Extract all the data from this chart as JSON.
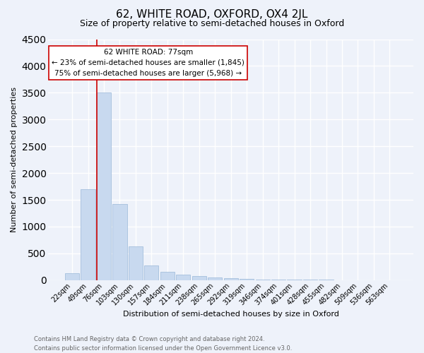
{
  "title": "62, WHITE ROAD, OXFORD, OX4 2JL",
  "subtitle": "Size of property relative to semi-detached houses in Oxford",
  "xlabel": "Distribution of semi-detached houses by size in Oxford",
  "ylabel": "Number of semi-detached properties",
  "footnote1": "Contains HM Land Registry data © Crown copyright and database right 2024.",
  "footnote2": "Contains public sector information licensed under the Open Government Licence v3.0.",
  "annotation_title": "62 WHITE ROAD: 77sqm",
  "annotation_line2": "← 23% of semi-detached houses are smaller (1,845)",
  "annotation_line3": "75% of semi-detached houses are larger (5,968) →",
  "bar_color": "#c8d9ef",
  "bar_edge_color": "#9ab8d8",
  "marker_line_color": "#cc0000",
  "annotation_box_edge": "#cc0000",
  "background_color": "#eef2fa",
  "grid_color": "#ffffff",
  "categories": [
    "22sqm",
    "49sqm",
    "76sqm",
    "103sqm",
    "130sqm",
    "157sqm",
    "184sqm",
    "211sqm",
    "238sqm",
    "265sqm",
    "292sqm",
    "319sqm",
    "346sqm",
    "374sqm",
    "401sqm",
    "428sqm",
    "455sqm",
    "482sqm",
    "509sqm",
    "536sqm",
    "563sqm"
  ],
  "values": [
    130,
    1700,
    3500,
    1420,
    630,
    270,
    155,
    100,
    80,
    55,
    35,
    25,
    15,
    10,
    8,
    5,
    5,
    3,
    3,
    2,
    2
  ],
  "ylim": [
    0,
    4500
  ],
  "yticks": [
    0,
    500,
    1000,
    1500,
    2000,
    2500,
    3000,
    3500,
    4000,
    4500
  ],
  "property_bar_index": 2,
  "title_fontsize": 11,
  "subtitle_fontsize": 9,
  "axis_label_fontsize": 8,
  "tick_fontsize": 7,
  "annotation_fontsize": 7.5,
  "footnote_fontsize": 6
}
